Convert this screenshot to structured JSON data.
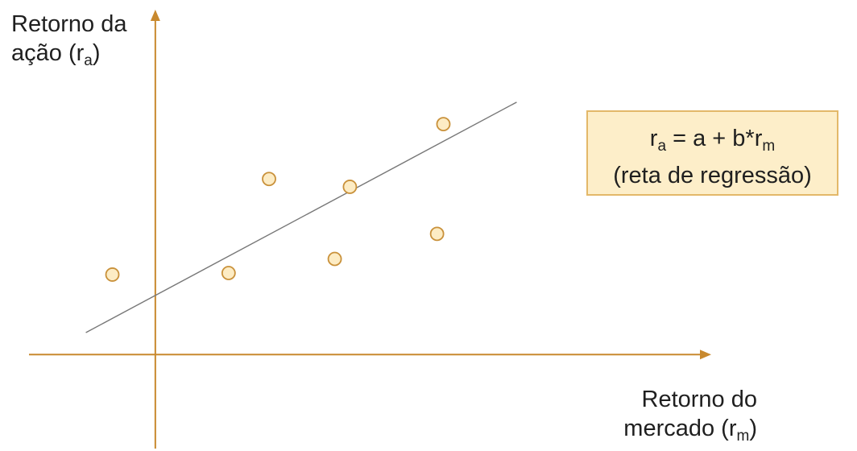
{
  "chart_data": {
    "type": "scatter",
    "title": "",
    "ylabel": {
      "main": "Retorno da",
      "line2": "ação (r",
      "sub": "a",
      "close": ")"
    },
    "xlabel": {
      "main": "Retorno do",
      "line2": "mercado (r",
      "sub": "m",
      "close": ")"
    },
    "xlim": [
      -1,
      4.4
    ],
    "ylim": [
      -0.6,
      2.2
    ],
    "grid": false,
    "points": [
      {
        "x": -0.34,
        "y": 0.51
      },
      {
        "x": 0.58,
        "y": 0.52
      },
      {
        "x": 0.9,
        "y": 1.12
      },
      {
        "x": 1.42,
        "y": 0.61
      },
      {
        "x": 1.54,
        "y": 1.07
      },
      {
        "x": 2.23,
        "y": 0.77
      },
      {
        "x": 2.28,
        "y": 1.47
      }
    ],
    "regression_line": {
      "x": [
        -0.55,
        2.86
      ],
      "y": [
        0.14,
        1.61
      ]
    },
    "annotation": {
      "eq_r": "r",
      "eq_sub_a": "a",
      "eq_mid": " = a + b*r",
      "eq_sub_m": "m",
      "note": "(reta de regressão)"
    },
    "colors": {
      "axis": "#c8892e",
      "line": "#777777",
      "marker_fill": "#fdecc4",
      "marker_stroke": "#c9913a",
      "box_fill": "#fdeec9",
      "box_stroke": "#e3b869"
    }
  }
}
